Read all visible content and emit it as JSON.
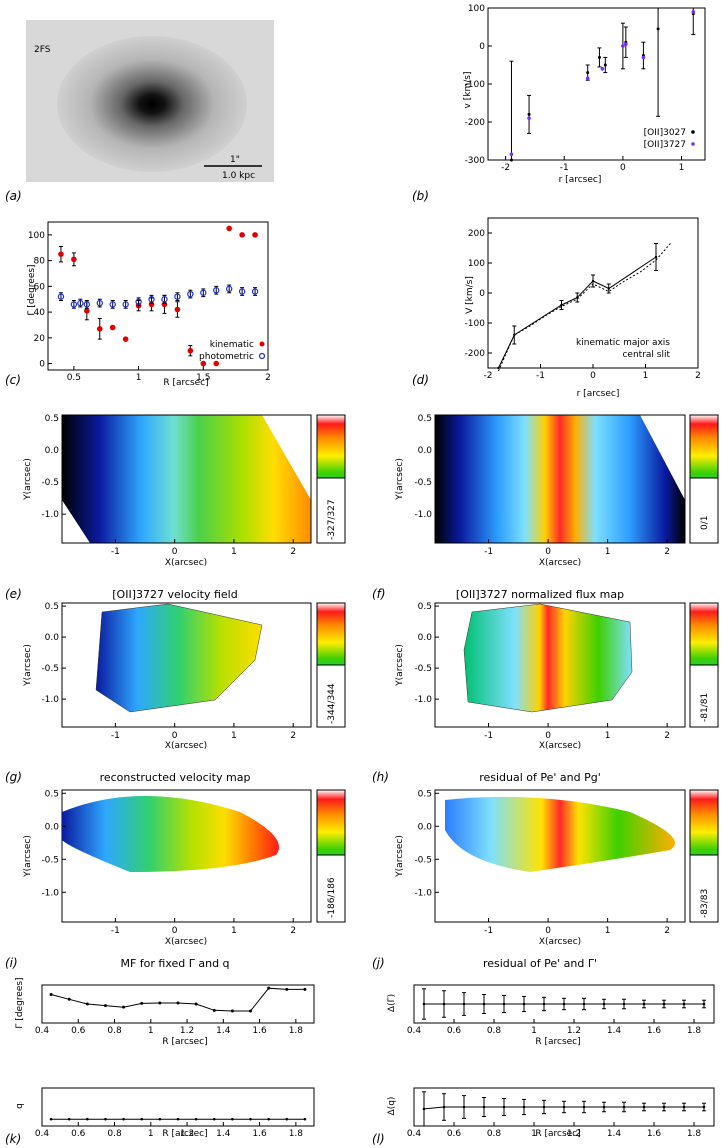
{
  "figure": {
    "panel_letters": [
      "(a)",
      "(b)",
      "(c)",
      "(d)",
      "(e)",
      "(f)",
      "(g)",
      "(h)",
      "(i)",
      "(j)",
      "(k)",
      "(l)"
    ],
    "titles": {
      "e": "[OII]3727 velocity field",
      "f": "[OII]3727 normalized flux map",
      "g": "reconstructed velocity map",
      "h": "residual of Pe' and Pg'",
      "i": "MF for fixed Γ and q",
      "j": "residual of Pe' and Γ'"
    },
    "panel_a": {
      "label": "2FS",
      "scalebar_top": "1\"",
      "scalebar_bottom": "1.0 kpc"
    },
    "panel_b": {
      "ylabel": "v [km/s]",
      "xlabel": "r [arcsec]",
      "legend": [
        "[OII]3027",
        "[OII]3727"
      ]
    },
    "panel_c": {
      "ylabel": "Γ [degrees]",
      "xlabel": "R [arcsec]",
      "legend": [
        "kinematic",
        "photometric"
      ]
    },
    "panel_d": {
      "ylabel": "V [km/s]",
      "xlabel": "r [arcsec]",
      "legend": [
        "kinematic major axis",
        "central slit"
      ]
    },
    "colorbar_labels": {
      "e": "-327/327",
      "f": "0/1",
      "g": "-344/344",
      "h": "-81/81",
      "i": "-186/186",
      "j": "-83/83"
    },
    "map_axes": {
      "xlabel": "X(arcsec)",
      "ylabel": "Y(arcsec)",
      "xticks": [
        "-1",
        "0",
        "1",
        "2"
      ],
      "yticks": [
        "0.5",
        "0.0",
        "-0.5",
        "-1.0"
      ]
    },
    "panel_i": {
      "ylabel": "Γ [degrees]",
      "xlabel": "R [arcsec]"
    },
    "panel_j": {
      "ylabel": "Δ(Γ)",
      "xlabel": "R [arcsec]"
    },
    "panel_k": {
      "ylabel": "q",
      "xlabel": "R [arcsec]"
    },
    "panel_l": {
      "ylabel": "Δ(q)",
      "xlabel": "R [arcsec]"
    }
  },
  "chart_data": [
    {
      "id": "b",
      "type": "scatter",
      "title": "",
      "xlabel": "r [arcsec]",
      "ylabel": "v [km/s]",
      "xlim": [
        -2.3,
        1.4
      ],
      "ylim": [
        -300,
        100
      ],
      "xticks": [
        -2,
        -1,
        0,
        1
      ],
      "yticks": [
        -300,
        -200,
        -100,
        0,
        100
      ],
      "series": [
        {
          "name": "[OII]3027",
          "x": [
            -1.9,
            -1.6,
            -0.6,
            -0.4,
            -0.3,
            0.0,
            0.05,
            0.35,
            0.6,
            1.2
          ],
          "y": [
            -300,
            -180,
            -70,
            -30,
            -50,
            0,
            10,
            -25,
            45,
            85
          ],
          "err": [
            260,
            50,
            20,
            25,
            20,
            60,
            40,
            35,
            230,
            55
          ]
        },
        {
          "name": "[OII]3727",
          "x": [
            -1.9,
            -1.6,
            -0.6,
            -0.35,
            0.0,
            0.05,
            0.35,
            1.2
          ],
          "y": [
            -285,
            -190,
            -85,
            -60,
            0,
            5,
            -30,
            90
          ],
          "err": [
            0,
            0,
            0,
            0,
            0,
            0,
            0,
            0
          ]
        }
      ]
    },
    {
      "id": "c",
      "type": "scatter",
      "title": "",
      "xlabel": "R [arcsec]",
      "ylabel": "Γ [degrees]",
      "xlim": [
        0.3,
        2.0
      ],
      "ylim": [
        -5,
        110
      ],
      "xticks": [
        0.5,
        1.0,
        1.5,
        2.0
      ],
      "yticks": [
        0,
        20,
        40,
        60,
        80,
        100
      ],
      "series": [
        {
          "name": "kinematic",
          "x": [
            0.4,
            0.5,
            0.6,
            0.7,
            0.8,
            0.9,
            1.0,
            1.1,
            1.2,
            1.3,
            1.4,
            1.5,
            1.6,
            1.7,
            1.8,
            1.9
          ],
          "y": [
            85,
            81,
            41,
            27,
            28,
            19,
            45,
            46,
            46,
            42,
            10,
            0,
            0,
            105,
            100,
            100
          ],
          "err": [
            6,
            5,
            7,
            8,
            0,
            0,
            4,
            5,
            7,
            6,
            4,
            0,
            0,
            0,
            0,
            0
          ]
        },
        {
          "name": "photometric",
          "x": [
            0.4,
            0.5,
            0.55,
            0.6,
            0.7,
            0.8,
            0.9,
            1.0,
            1.1,
            1.2,
            1.3,
            1.4,
            1.5,
            1.6,
            1.7,
            1.8,
            1.9
          ],
          "y": [
            52,
            46,
            47,
            46,
            47,
            46,
            46,
            48,
            50,
            50,
            52,
            54,
            55,
            57,
            58,
            56,
            56
          ],
          "err": [
            3,
            3,
            3,
            3,
            3,
            3,
            3,
            3,
            3,
            3,
            3,
            3,
            3,
            3,
            3,
            3,
            3
          ]
        }
      ]
    },
    {
      "id": "d",
      "type": "line",
      "title": "",
      "xlabel": "r [arcsec]",
      "ylabel": "V [km/s]",
      "xlim": [
        -2,
        2
      ],
      "ylim": [
        -250,
        250
      ],
      "xticks": [
        -2,
        -1,
        0,
        1,
        2
      ],
      "yticks": [
        -200,
        -100,
        0,
        100,
        200
      ],
      "series": [
        {
          "name": "kinematic major axis",
          "x": [
            -1.8,
            -1.5,
            -0.6,
            -0.3,
            0.0,
            0.3,
            1.2
          ],
          "y": [
            -250,
            -140,
            -40,
            -15,
            40,
            15,
            120
          ],
          "err": [
            0,
            30,
            15,
            15,
            20,
            15,
            45
          ]
        },
        {
          "name": "central slit",
          "x": [
            -1.8,
            -1.5,
            -1.2,
            -0.9,
            -0.6,
            -0.3,
            0.0,
            0.3,
            0.6,
            0.9,
            1.2,
            1.5
          ],
          "y": [
            -260,
            -140,
            -110,
            -75,
            -45,
            -20,
            30,
            5,
            40,
            70,
            110,
            170
          ]
        }
      ]
    },
    {
      "id": "i",
      "type": "line",
      "title": "MF for fixed Γ and q",
      "xlabel": "R [arcsec]",
      "ylabel": "Γ [degrees]",
      "xlim": [
        0.4,
        1.9
      ],
      "ylim": [
        0,
        120
      ],
      "xticks": [
        0.4,
        0.6,
        0.8,
        1.0,
        1.2,
        1.4,
        1.6,
        1.8
      ],
      "series": [
        {
          "name": "Γ",
          "x": [
            0.45,
            0.55,
            0.65,
            0.75,
            0.85,
            0.95,
            1.05,
            1.15,
            1.25,
            1.35,
            1.45,
            1.55,
            1.65,
            1.75,
            1.85
          ],
          "y": [
            90,
            75,
            60,
            55,
            50,
            62,
            63,
            63,
            60,
            40,
            38,
            38,
            110,
            106,
            106
          ]
        }
      ]
    },
    {
      "id": "j",
      "type": "line",
      "title": "residual of Pe' and Γ'",
      "xlabel": "R [arcsec]",
      "ylabel": "Δ(Γ)",
      "xlim": [
        0.4,
        1.9
      ],
      "ylim": [
        -1,
        1
      ],
      "xticks": [
        0.4,
        0.6,
        0.8,
        1.0,
        1.2,
        1.4,
        1.6,
        1.8
      ],
      "series": [
        {
          "name": "Δ(Γ)",
          "x": [
            0.45,
            0.55,
            0.65,
            0.75,
            0.85,
            0.95,
            1.05,
            1.15,
            1.25,
            1.35,
            1.45,
            1.55,
            1.65,
            1.75,
            1.85
          ],
          "y": [
            0,
            0,
            0,
            0,
            0,
            0,
            0,
            0,
            0,
            0,
            0,
            0,
            0,
            0,
            0
          ],
          "err": [
            0.8,
            0.7,
            0.6,
            0.5,
            0.45,
            0.4,
            0.35,
            0.3,
            0.3,
            0.25,
            0.25,
            0.2,
            0.2,
            0.2,
            0.2
          ]
        }
      ]
    },
    {
      "id": "k",
      "type": "line",
      "title": "",
      "xlabel": "R [arcsec]",
      "ylabel": "q",
      "xlim": [
        0.4,
        1.9
      ],
      "ylim": [
        0,
        1
      ],
      "xticks": [
        0.4,
        0.6,
        0.8,
        1.0,
        1.2,
        1.4,
        1.6,
        1.8
      ],
      "series": [
        {
          "name": "q",
          "x": [
            0.45,
            0.55,
            0.65,
            0.75,
            0.85,
            0.95,
            1.05,
            1.15,
            1.25,
            1.35,
            1.45,
            1.55,
            1.65,
            1.75,
            1.85
          ],
          "y": [
            0.18,
            0.18,
            0.18,
            0.18,
            0.18,
            0.18,
            0.18,
            0.18,
            0.18,
            0.18,
            0.18,
            0.18,
            0.18,
            0.18,
            0.18
          ]
        }
      ]
    },
    {
      "id": "l",
      "type": "line",
      "title": "",
      "xlabel": "R [arcsec]",
      "ylabel": "Δ(q)",
      "xlim": [
        0.4,
        1.9
      ],
      "ylim": [
        -1,
        1
      ],
      "xticks": [
        0.4,
        0.6,
        0.8,
        1.0,
        1.2,
        1.4,
        1.6,
        1.8
      ],
      "series": [
        {
          "name": "Δ(q)",
          "x": [
            0.45,
            0.55,
            0.65,
            0.75,
            0.85,
            0.95,
            1.05,
            1.15,
            1.25,
            1.35,
            1.45,
            1.55,
            1.65,
            1.75,
            1.85
          ],
          "y": [
            -0.1,
            0,
            0,
            0,
            0,
            0,
            0,
            0,
            0,
            0,
            0,
            0,
            0,
            0,
            0
          ],
          "err": [
            0.9,
            0.7,
            0.6,
            0.5,
            0.45,
            0.4,
            0.35,
            0.3,
            0.3,
            0.25,
            0.25,
            0.2,
            0.2,
            0.2,
            0.2
          ]
        }
      ]
    }
  ]
}
